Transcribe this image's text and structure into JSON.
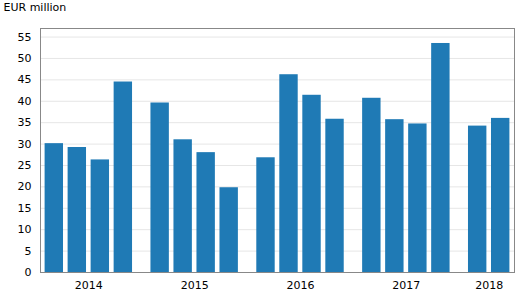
{
  "chart_data": {
    "type": "bar",
    "ylabel": "EUR million",
    "categories": [
      "2014",
      "2014",
      "2014",
      "2014",
      "2015",
      "2015",
      "2015",
      "2015",
      "2016",
      "2016",
      "2016",
      "2016",
      "2017",
      "2017",
      "2017",
      "2017",
      "2018",
      "2018"
    ],
    "values": [
      30.1,
      29.2,
      26.3,
      44.5,
      39.6,
      31.0,
      28.0,
      19.8,
      26.8,
      46.2,
      41.4,
      35.8,
      40.7,
      35.7,
      34.7,
      53.5,
      34.2,
      36.0
    ],
    "color": "#1f7ab5",
    "ylim": [
      0,
      57
    ],
    "yticks": [
      0,
      5,
      10,
      15,
      20,
      25,
      30,
      35,
      40,
      45,
      50,
      55
    ],
    "grid": true
  }
}
